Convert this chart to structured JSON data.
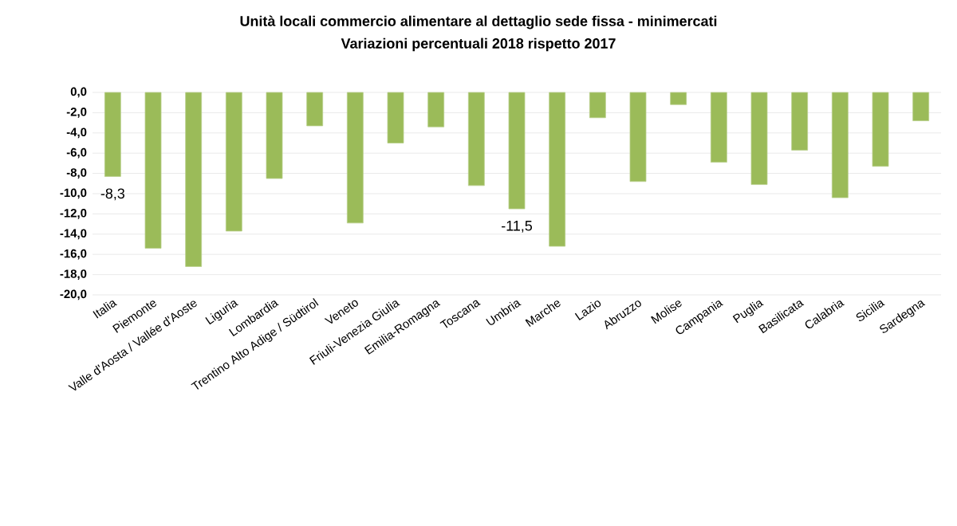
{
  "chart_data": {
    "type": "bar",
    "title": "Unità locali commercio alimentare al dettaglio sede fissa - minimercati",
    "subtitle": "Variazioni percentuali  2018 rispetto 2017",
    "categories": [
      "Italia",
      "Piemonte",
      "Valle d'Aosta / Vallée d'Aoste",
      "Liguria",
      "Lombardia",
      "Trentino Alto Adige / Südtirol",
      "Veneto",
      "Friuli-Venezia Giulia",
      "Emilia-Romagna",
      "Toscana",
      "Umbria",
      "Marche",
      "Lazio",
      "Abruzzo",
      "Molise",
      "Campania",
      "Puglia",
      "Basilicata",
      "Calabria",
      "Sicilia",
      "Sardegna"
    ],
    "values": [
      -8.3,
      -15.4,
      -17.2,
      -13.7,
      -8.5,
      -3.3,
      -12.9,
      -5.0,
      -3.4,
      -9.2,
      -11.5,
      -15.2,
      -2.5,
      -8.8,
      -1.2,
      -6.9,
      -9.1,
      -5.7,
      -10.4,
      -7.3,
      -2.8
    ],
    "value_labels": [
      "-8,3",
      null,
      null,
      null,
      null,
      null,
      null,
      null,
      null,
      null,
      "-11,5",
      null,
      null,
      null,
      null,
      null,
      null,
      null,
      null,
      null,
      null
    ],
    "color": "#9bbb59",
    "ylim": [
      -20,
      0
    ],
    "yticks": [
      {
        "value": 0,
        "label": "0,0"
      },
      {
        "value": -2,
        "label": "-2,0"
      },
      {
        "value": -4,
        "label": "-4,0"
      },
      {
        "value": -6,
        "label": "-6,0"
      },
      {
        "value": -8,
        "label": "-8,0"
      },
      {
        "value": -10,
        "label": "-10,0"
      },
      {
        "value": -12,
        "label": "-12,0"
      },
      {
        "value": -14,
        "label": "-14,0"
      },
      {
        "value": -16,
        "label": "-16,0"
      },
      {
        "value": -18,
        "label": "-18,0"
      },
      {
        "value": -20,
        "label": "-20,0"
      }
    ],
    "grid": "y"
  }
}
